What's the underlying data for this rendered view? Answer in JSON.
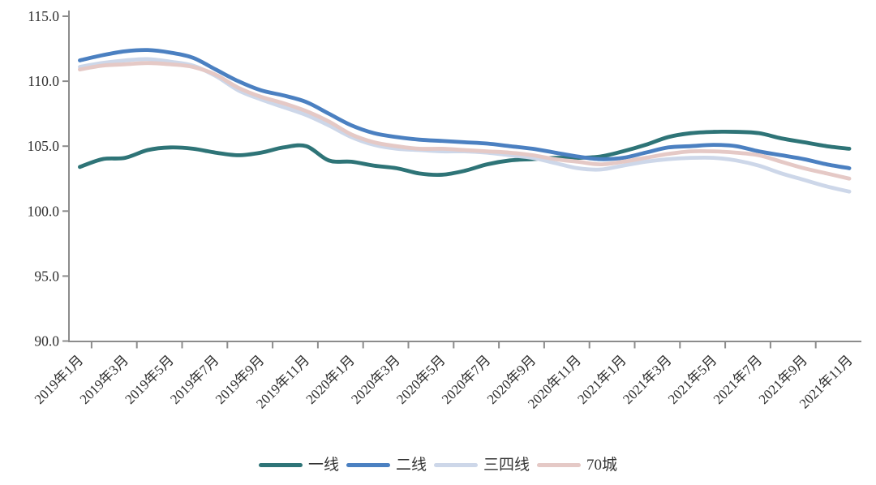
{
  "chart_data": {
    "type": "line",
    "title": "",
    "smoothing": true,
    "legend_position": "bottom",
    "grid": false,
    "axis_color": "#8c8c8c",
    "tick_label_color": "#2f2f2f",
    "x_label_rotation_deg": 45,
    "ylim": [
      90,
      115
    ],
    "yticks": [
      {
        "value": 90,
        "label": "90.0"
      },
      {
        "value": 95,
        "label": "95.0"
      },
      {
        "value": 100,
        "label": "100.0"
      },
      {
        "value": 105,
        "label": "105.0"
      },
      {
        "value": 110,
        "label": "110.0"
      },
      {
        "value": 115,
        "label": "115.0"
      }
    ],
    "x": [
      "2019年1月",
      "2019年2月",
      "2019年3月",
      "2019年4月",
      "2019年5月",
      "2019年6月",
      "2019年7月",
      "2019年8月",
      "2019年9月",
      "2019年10月",
      "2019年11月",
      "2019年12月",
      "2020年1月",
      "2020年2月",
      "2020年3月",
      "2020年4月",
      "2020年5月",
      "2020年6月",
      "2020年7月",
      "2020年8月",
      "2020年9月",
      "2020年10月",
      "2020年11月",
      "2020年12月",
      "2021年1月",
      "2021年2月",
      "2021年3月",
      "2021年4月",
      "2021年5月",
      "2021年6月",
      "2021年7月",
      "2021年8月",
      "2021年9月",
      "2021年10月",
      "2021年11月"
    ],
    "x_tick_labels": [
      "2019年1月",
      "2019年3月",
      "2019年5月",
      "2019年7月",
      "2019年9月",
      "2019年11月",
      "2020年1月",
      "2020年3月",
      "2020年5月",
      "2020年7月",
      "2020年9月",
      "2020年11月",
      "2021年1月",
      "2021年3月",
      "2021年5月",
      "2021年7月",
      "2021年9月",
      "2021年11月"
    ],
    "series": [
      {
        "name": "一线",
        "color": "#2e7477",
        "values": [
          103.4,
          104.0,
          104.1,
          104.7,
          104.9,
          104.8,
          104.5,
          104.3,
          104.5,
          104.9,
          105.0,
          103.9,
          103.8,
          103.5,
          103.3,
          102.9,
          102.8,
          103.1,
          103.6,
          103.9,
          104.0,
          104.1,
          104.1,
          104.2,
          104.6,
          105.1,
          105.7,
          106.0,
          106.1,
          106.1,
          106.0,
          105.6,
          105.3,
          105.0,
          104.8
        ]
      },
      {
        "name": "二线",
        "color": "#4b80c1",
        "values": [
          111.6,
          112.0,
          112.3,
          112.4,
          112.2,
          111.8,
          110.9,
          110.0,
          109.3,
          108.9,
          108.4,
          107.5,
          106.6,
          106.0,
          105.7,
          105.5,
          105.4,
          105.3,
          105.2,
          105.0,
          104.8,
          104.5,
          104.2,
          104.0,
          104.1,
          104.5,
          104.9,
          105.0,
          105.1,
          105.0,
          104.6,
          104.3,
          104.0,
          103.6,
          103.3
        ]
      },
      {
        "name": "三四线",
        "color": "#cdd7e9",
        "values": [
          111.1,
          111.4,
          111.6,
          111.7,
          111.5,
          111.2,
          110.4,
          109.3,
          108.6,
          108.0,
          107.4,
          106.6,
          105.7,
          105.1,
          104.8,
          104.7,
          104.6,
          104.6,
          104.5,
          104.3,
          104.1,
          103.7,
          103.3,
          103.2,
          103.5,
          103.8,
          104.0,
          104.1,
          104.1,
          103.9,
          103.5,
          102.9,
          102.4,
          101.9,
          101.5
        ]
      },
      {
        "name": "70城",
        "color": "#e5c9c6",
        "values": [
          110.9,
          111.2,
          111.3,
          111.4,
          111.3,
          111.1,
          110.5,
          109.5,
          108.8,
          108.3,
          107.7,
          106.9,
          105.9,
          105.3,
          105.0,
          104.8,
          104.8,
          104.7,
          104.6,
          104.5,
          104.3,
          104.0,
          103.8,
          103.6,
          103.8,
          104.1,
          104.4,
          104.6,
          104.6,
          104.5,
          104.3,
          103.8,
          103.3,
          102.9,
          102.5
        ]
      }
    ]
  }
}
